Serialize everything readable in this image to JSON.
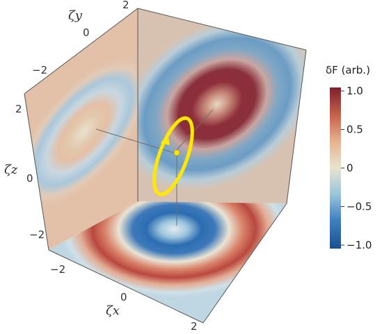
{
  "chart_data": {
    "type": "heatmap",
    "title": "",
    "projections": [
      {
        "plane": "xy",
        "field": "concentric rings"
      },
      {
        "plane": "yz",
        "field": "tilted rings"
      },
      {
        "plane": "xz",
        "field": "tilted rings"
      }
    ],
    "axes": {
      "x": {
        "label": "ζx",
        "ticks": [
          "−2",
          "0",
          "2"
        ],
        "range": [
          -2.6,
          2.6
        ]
      },
      "y": {
        "label": "ζy",
        "ticks": [
          "−2",
          "0",
          "2"
        ],
        "range": [
          -2.6,
          2.6
        ]
      },
      "z": {
        "label": "ζz",
        "ticks": [
          "−2",
          "0",
          "2"
        ],
        "range": [
          -2.6,
          2.6
        ]
      }
    },
    "colorbar": {
      "title": "δF (arb.)",
      "range": [
        -1.0,
        1.0
      ],
      "ticks": [
        "1.0",
        "0.5",
        "0",
        "−0.5",
        "−1.0"
      ],
      "tick_values": [
        1.0,
        0.5,
        0,
        -0.5,
        -1.0
      ],
      "colors": [
        "#1b4f8f",
        "#3f82c0",
        "#9cc6dc",
        "#e8e4cf",
        "#e7b591",
        "#c8664c",
        "#7d1f2d"
      ]
    },
    "trajectory": {
      "shape": "closed loop",
      "color": "#ffe800"
    }
  }
}
